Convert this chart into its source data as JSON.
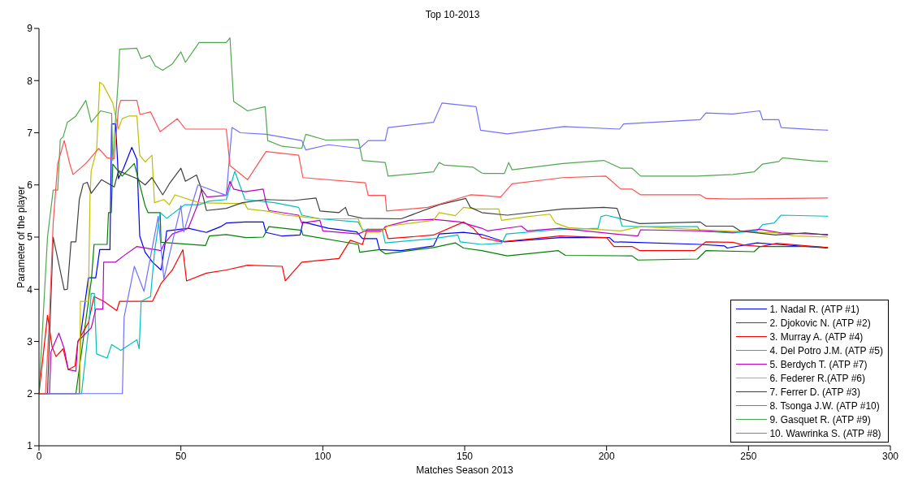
{
  "chart_data": {
    "type": "line",
    "title": "Top 10-2013",
    "xlabel": "Matches Season 2013",
    "ylabel": "Parameter of the player",
    "xlim": [
      0,
      300
    ],
    "xticks": [
      0,
      50,
      100,
      150,
      200,
      250,
      300
    ],
    "ylim": [
      1,
      9
    ],
    "yticks": [
      1,
      2,
      3,
      4,
      5,
      6,
      7,
      8,
      9
    ],
    "legend": "bottom right",
    "marker": "none",
    "line_style": "solid",
    "series": [
      {
        "name": "1. Nadal R. (ATP #1)",
        "color": "#0000ff",
        "x": [
          0,
          14.2,
          14.6,
          17.4,
          20,
          21.4,
          25,
          25.6,
          27,
          28,
          29.8,
          32.7,
          34.5,
          35.5,
          37.4,
          40,
          43,
          44.5,
          45,
          52.6,
          59,
          64,
          66,
          72.6,
          79,
          80,
          85.7,
          92,
          93,
          102,
          112,
          114,
          119,
          120,
          127.6,
          139,
          141,
          149.6,
          156,
          164,
          183.6,
          201,
          202.6,
          233,
          241.6,
          242.5,
          253,
          260,
          278
        ],
        "values": [
          2,
          2,
          3.1,
          4.22,
          4.22,
          4.76,
          4.76,
          7.17,
          7.17,
          6.12,
          6.32,
          6.72,
          6.49,
          5.02,
          4.71,
          4.52,
          4.37,
          4.9,
          5.12,
          5.17,
          5.09,
          5.2,
          5.27,
          5.29,
          5.29,
          5.09,
          5.02,
          5.04,
          5.29,
          5.17,
          5.1,
          4.97,
          4.97,
          4.76,
          4.74,
          4.83,
          5.06,
          5.09,
          5.05,
          4.91,
          4.99,
          4.99,
          4.91,
          4.86,
          4.83,
          4.79,
          4.89,
          4.86,
          4.79
        ]
      },
      {
        "name": "2. Djokovic N. (ATP #2)",
        "color": "#008000",
        "x": [
          0,
          13,
          18.5,
          19.4,
          24,
          24.5,
          25.5,
          26,
          29.3,
          33.6,
          37.4,
          38.4,
          42.7,
          43,
          58.7,
          60,
          66,
          73,
          79,
          81,
          92.5,
          93,
          112.5,
          113,
          120,
          122,
          139,
          146.7,
          149.6,
          156,
          165,
          183,
          185.5,
          209,
          211,
          232,
          235,
          252,
          254,
          273,
          278
        ],
        "values": [
          2,
          2,
          4.2,
          4.86,
          4.86,
          5.47,
          5.47,
          6.4,
          6.17,
          6.41,
          5.6,
          5.47,
          5.47,
          4.9,
          4.84,
          5.02,
          5.05,
          4.99,
          5.0,
          5.2,
          5.13,
          5.04,
          4.86,
          4.71,
          4.76,
          4.68,
          4.8,
          4.89,
          4.79,
          4.74,
          4.64,
          4.74,
          4.65,
          4.64,
          4.56,
          4.58,
          4.74,
          4.72,
          4.82,
          4.82,
          4.8
        ]
      },
      {
        "name": "3. Murray A. (ATP #4)",
        "color": "#ff0000",
        "x": [
          0,
          3,
          4.6,
          6,
          8.5,
          10.3,
          12.7,
          13.7,
          17.4,
          19.4,
          22.8,
          27.4,
          28.4,
          40,
          43,
          47,
          50.7,
          52,
          59,
          66,
          73.5,
          85.7,
          86.8,
          92.6,
          105.7,
          109.7,
          114,
          115.6,
          122,
          123,
          139,
          149.6,
          153,
          156,
          162.7,
          183.6,
          200,
          202.6,
          209,
          211.7,
          231,
          235,
          244.5,
          248,
          254.4,
          260,
          278
        ],
        "values": [
          2,
          3.5,
          2.9,
          2.71,
          2.86,
          2.46,
          2.53,
          3.0,
          3.36,
          3.86,
          3.77,
          3.59,
          3.77,
          3.77,
          4.11,
          4.37,
          4.76,
          4.16,
          4.31,
          4.37,
          4.46,
          4.44,
          4.16,
          4.52,
          4.59,
          4.94,
          4.86,
          5.15,
          5.15,
          4.97,
          5.04,
          5.29,
          5.17,
          4.99,
          4.91,
          5.02,
          4.99,
          4.82,
          4.82,
          4.74,
          4.74,
          4.91,
          4.9,
          4.85,
          4.82,
          4.88,
          4.8
        ]
      },
      {
        "name": "4. Del Potro J.M. (ATP #5)",
        "color": "#00bfbf",
        "x": [
          0,
          15,
          17.4,
          18.4,
          19.5,
          20.3,
          24,
          25.6,
          28.8,
          34.5,
          35.3,
          36,
          39.3,
          40.7,
          42.7,
          45,
          51.3,
          56.4,
          60,
          66,
          69,
          72.6,
          83,
          91.5,
          92.6,
          99,
          112.5,
          114,
          121,
          122,
          139,
          147.6,
          148.4,
          156,
          163,
          164.7,
          182,
          197,
          198,
          199.7,
          204.6,
          205.5,
          211,
          232,
          233,
          244.5,
          253,
          255,
          259,
          261.5,
          278
        ],
        "values": [
          2,
          2,
          3.21,
          3.92,
          3.92,
          2.76,
          2.68,
          2.94,
          2.83,
          3.03,
          2.86,
          3.77,
          3.86,
          4.71,
          5.47,
          5.36,
          5.62,
          5.62,
          5.69,
          5.72,
          6.26,
          5.72,
          5.66,
          5.57,
          5.42,
          5.35,
          5.29,
          5.14,
          5.14,
          4.89,
          4.97,
          5.04,
          4.91,
          4.86,
          4.88,
          5.06,
          5.14,
          5.17,
          5.39,
          5.42,
          5.36,
          5.21,
          5.2,
          5.2,
          5.12,
          5.08,
          5.12,
          5.24,
          5.27,
          5.42,
          5.4
        ]
      },
      {
        "name": "5. Berdych T. (ATP #7)",
        "color": "#bf00bf",
        "x": [
          0,
          3.7,
          4.2,
          7,
          8.9,
          10.3,
          13,
          13.7,
          18.4,
          20,
          22.5,
          22.8,
          27,
          29.8,
          34.5,
          43,
          44,
          47,
          52.6,
          55.9,
          57.3,
          59.2,
          66,
          67.3,
          68.6,
          72.6,
          79,
          80,
          81,
          91.5,
          92.6,
          99,
          100,
          112.5,
          115,
          121,
          122,
          130.5,
          139,
          148.4,
          156,
          158,
          170,
          172,
          183.6,
          205,
          211,
          212,
          234,
          244.5,
          254,
          261.5,
          278
        ],
        "values": [
          2,
          2,
          2.8,
          3.16,
          2.86,
          2.46,
          2.43,
          3.0,
          3.26,
          3.62,
          3.62,
          4.52,
          4.52,
          4.64,
          4.82,
          4.74,
          4.86,
          5.06,
          5.17,
          5.62,
          5.92,
          5.77,
          5.8,
          6.07,
          5.92,
          5.87,
          5.92,
          5.66,
          5.51,
          5.42,
          5.27,
          5.32,
          5.12,
          5.06,
          5.12,
          5.12,
          5.2,
          5.32,
          5.34,
          5.29,
          5.17,
          5.12,
          5.21,
          5.12,
          5.17,
          5.05,
          5.02,
          5.14,
          5.12,
          5.09,
          5.15,
          5.08,
          5.05
        ]
      },
      {
        "name": "6. Federer R.(ATP #6)",
        "color": "#bfbf00",
        "x": [
          0,
          14.3,
          14.6,
          17.4,
          18,
          18.4,
          20.3,
          21.4,
          22.6,
          26,
          28,
          29.3,
          31.6,
          34.5,
          35.5,
          37.4,
          39.8,
          40.7,
          44,
          45.9,
          47.9,
          56.4,
          72.6,
          73.5,
          80,
          86.8,
          92.6,
          99,
          112.5,
          114,
          115.6,
          120,
          123,
          139,
          141,
          146.7,
          149.6,
          154,
          156,
          162,
          163,
          172,
          180,
          182,
          186.5,
          205,
          212,
          234,
          244.5,
          260,
          266,
          278
        ],
        "values": [
          2,
          2,
          3.77,
          3.77,
          5.81,
          6.27,
          6.67,
          7.97,
          7.92,
          7.57,
          7.07,
          7.27,
          7.32,
          7.32,
          6.57,
          6.44,
          6.57,
          5.66,
          5.72,
          5.62,
          5.81,
          5.66,
          5.64,
          5.54,
          5.5,
          5.42,
          5.39,
          5.35,
          5.35,
          5.12,
          5.09,
          5.09,
          5.21,
          5.32,
          5.47,
          5.41,
          5.57,
          5.54,
          5.54,
          5.54,
          5.32,
          5.39,
          5.44,
          5.27,
          5.18,
          5.12,
          5.2,
          5.14,
          5.11,
          5.08,
          5.02,
          5.0
        ]
      },
      {
        "name": "7. Ferrer D. (ATP #3)",
        "color": "#404040",
        "x": [
          0,
          3,
          5,
          8.9,
          10,
          11.3,
          13,
          14.2,
          15.6,
          17,
          18.4,
          22,
          26.5,
          28,
          34.5,
          37.4,
          39.8,
          43.6,
          45.9,
          50,
          51.6,
          55.5,
          57,
          59,
          66,
          71.6,
          80,
          89.6,
          97.6,
          99,
          105.7,
          108,
          109,
          114,
          127.6,
          141,
          150.4,
          152,
          156,
          165,
          184.6,
          199,
          203.7,
          205,
          211.7,
          233,
          235,
          244.5,
          247,
          259.5,
          270,
          278
        ],
        "values": [
          2,
          2,
          5.0,
          3.99,
          4.0,
          4.91,
          4.91,
          5.72,
          6.02,
          6.05,
          5.84,
          6.1,
          5.96,
          6.27,
          6.12,
          6.0,
          6.14,
          5.81,
          6.02,
          6.32,
          6.07,
          6.19,
          5.96,
          5.51,
          5.55,
          5.66,
          5.72,
          5.7,
          5.75,
          5.5,
          5.47,
          5.57,
          5.42,
          5.36,
          5.35,
          5.62,
          5.74,
          5.57,
          5.47,
          5.42,
          5.54,
          5.57,
          5.55,
          5.35,
          5.26,
          5.29,
          5.21,
          5.21,
          5.12,
          5.04,
          5.08,
          5.04
        ]
      },
      {
        "name": "8. Tsonga J.W. (ATP #10)",
        "color": "#7070ff",
        "x": [
          0,
          29.4,
          30,
          33.6,
          37,
          42,
          44,
          50,
          51,
          56,
          66,
          68,
          71,
          80,
          92.6,
          94,
          102,
          113,
          116,
          122,
          123,
          139,
          142,
          154,
          155.6,
          165,
          185,
          204.6,
          206,
          233,
          235,
          244.5,
          254,
          255,
          260.7,
          261.5,
          273,
          278
        ],
        "values": [
          2,
          2,
          3.47,
          4.44,
          3.96,
          5.4,
          4.2,
          5.6,
          5.1,
          6.0,
          5.8,
          7.1,
          7.0,
          6.97,
          6.85,
          6.67,
          6.77,
          6.7,
          6.85,
          6.85,
          7.1,
          7.2,
          7.57,
          7.5,
          7.05,
          6.98,
          7.12,
          7.07,
          7.17,
          7.25,
          7.38,
          7.36,
          7.42,
          7.25,
          7.25,
          7.1,
          7.06,
          7.05
        ]
      },
      {
        "name": "9. Gasquet R. (ATP #9)",
        "color": "#4fa84f",
        "x": [
          0,
          3,
          5,
          6.6,
          7.5,
          8.5,
          10,
          13,
          16.5,
          18.4,
          21.7,
          25.6,
          26,
          28,
          28.4,
          34.5,
          36,
          39,
          41,
          43.6,
          47,
          50,
          51.6,
          56.4,
          66,
          67.3,
          68.6,
          73.5,
          79.7,
          80.6,
          85.7,
          92.6,
          94,
          101,
          112.5,
          114,
          122,
          123,
          139,
          141,
          142.7,
          153,
          156,
          157,
          164,
          165.5,
          166.7,
          184.6,
          199,
          205,
          209,
          212,
          232,
          244.5,
          252,
          255,
          260.7,
          262,
          273,
          278
        ],
        "values": [
          2,
          5.0,
          5.9,
          5.9,
          6.87,
          6.92,
          7.2,
          7.32,
          7.62,
          7.2,
          7.42,
          7.37,
          6.47,
          8.07,
          8.6,
          8.62,
          8.42,
          8.48,
          8.28,
          8.2,
          8.32,
          8.55,
          8.35,
          8.73,
          8.73,
          8.82,
          7.6,
          7.42,
          7.5,
          6.85,
          6.74,
          6.7,
          6.97,
          6.86,
          6.87,
          6.47,
          6.43,
          6.17,
          6.25,
          6.43,
          6.38,
          6.34,
          6.23,
          6.22,
          6.22,
          6.43,
          6.29,
          6.41,
          6.47,
          6.32,
          6.32,
          6.17,
          6.17,
          6.2,
          6.25,
          6.4,
          6.45,
          6.52,
          6.46,
          6.45
        ]
      },
      {
        "name": "10. Wawrinka S. (ATP #8)",
        "color": "#ff5050",
        "x": [
          0,
          2.3,
          3.7,
          5,
          6.6,
          8.9,
          10.8,
          12,
          16.5,
          21,
          24,
          26.5,
          28,
          28.8,
          34.5,
          35.6,
          39.3,
          42.7,
          48.7,
          51.6,
          58.4,
          66,
          67.3,
          73.5,
          80,
          91.5,
          93,
          115,
          116,
          122,
          122.5,
          137,
          141,
          152,
          156,
          162.7,
          166.7,
          184.6,
          199.7,
          205,
          209,
          212,
          233,
          235,
          244.5,
          278
        ],
        "values": [
          2,
          2,
          3.5,
          5.27,
          6.41,
          6.85,
          6.41,
          6.2,
          6.41,
          6.7,
          6.52,
          6.5,
          7.47,
          7.62,
          7.62,
          7.35,
          7.4,
          7.02,
          7.27,
          7.07,
          7.07,
          7.07,
          6.37,
          6.1,
          6.64,
          6.57,
          6.14,
          6.04,
          5.8,
          5.8,
          5.5,
          5.57,
          5.63,
          5.81,
          5.8,
          5.77,
          6.02,
          6.14,
          6.17,
          5.92,
          5.92,
          5.81,
          5.81,
          5.74,
          5.73,
          5.75
        ]
      }
    ]
  }
}
